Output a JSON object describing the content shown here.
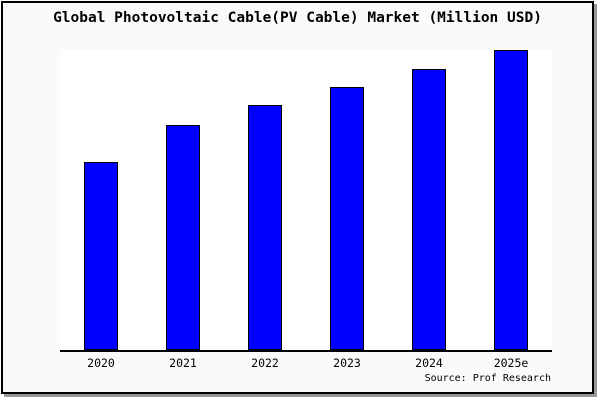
{
  "chart_data": {
    "type": "bar",
    "title": "Global Photovoltaic Cable(PV Cable) Market (Million USD)",
    "categories": [
      "2020",
      "2021",
      "2022",
      "2023",
      "2024",
      "2025e"
    ],
    "values": [
      62.8,
      75.1,
      81.6,
      87.6,
      93.6,
      99.9
    ],
    "value_note": "no y-axis or data labels shown; values are bar heights as % of plot height (2025e = max)",
    "xlabel": "",
    "ylabel": "",
    "ylim": [
      0,
      100
    ],
    "grid": false,
    "legend": null,
    "bar_color": "#0000ff",
    "bar_border_color": "#000000"
  },
  "source": {
    "label": "Source: Prof Research"
  },
  "colors": {
    "frame_background": "#fafafa",
    "plot_background": "#ffffff",
    "frame_border": "#000000",
    "frame_shadow": "#989898",
    "axis_line": "#000000",
    "text": "#000000"
  }
}
